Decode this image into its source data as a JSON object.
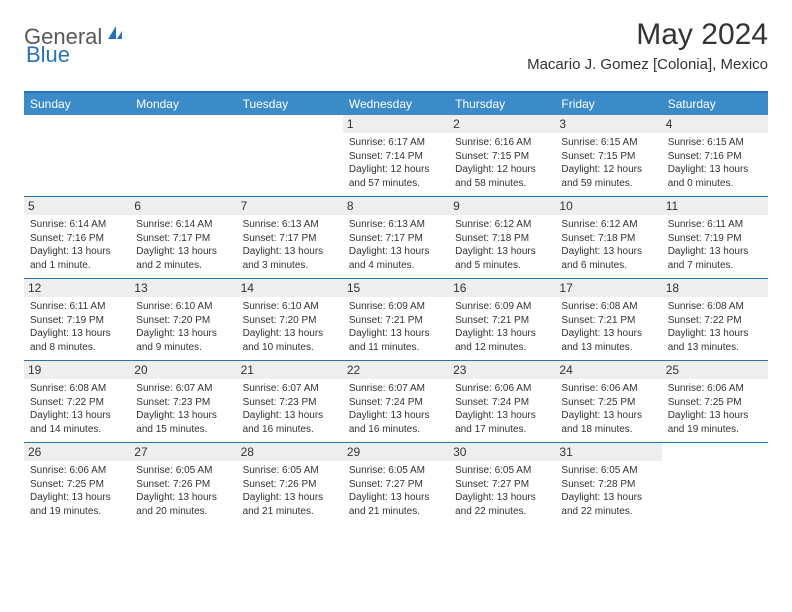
{
  "logo": {
    "text1": "General",
    "text2": "Blue",
    "icon_color": "#2a71b8"
  },
  "title": "May 2024",
  "location": "Macario J. Gomez [Colonia], Mexico",
  "colors": {
    "header_bg": "#3b8bc9",
    "border": "#2a71b8",
    "daynum_bg": "#eeeeee",
    "text": "#333333"
  },
  "weekdays": [
    "Sunday",
    "Monday",
    "Tuesday",
    "Wednesday",
    "Thursday",
    "Friday",
    "Saturday"
  ],
  "weeks": [
    [
      {
        "n": "",
        "sr": "",
        "ss": "",
        "dl": ""
      },
      {
        "n": "",
        "sr": "",
        "ss": "",
        "dl": ""
      },
      {
        "n": "",
        "sr": "",
        "ss": "",
        "dl": ""
      },
      {
        "n": "1",
        "sr": "6:17 AM",
        "ss": "7:14 PM",
        "dl": "12 hours and 57 minutes."
      },
      {
        "n": "2",
        "sr": "6:16 AM",
        "ss": "7:15 PM",
        "dl": "12 hours and 58 minutes."
      },
      {
        "n": "3",
        "sr": "6:15 AM",
        "ss": "7:15 PM",
        "dl": "12 hours and 59 minutes."
      },
      {
        "n": "4",
        "sr": "6:15 AM",
        "ss": "7:16 PM",
        "dl": "13 hours and 0 minutes."
      }
    ],
    [
      {
        "n": "5",
        "sr": "6:14 AM",
        "ss": "7:16 PM",
        "dl": "13 hours and 1 minute."
      },
      {
        "n": "6",
        "sr": "6:14 AM",
        "ss": "7:17 PM",
        "dl": "13 hours and 2 minutes."
      },
      {
        "n": "7",
        "sr": "6:13 AM",
        "ss": "7:17 PM",
        "dl": "13 hours and 3 minutes."
      },
      {
        "n": "8",
        "sr": "6:13 AM",
        "ss": "7:17 PM",
        "dl": "13 hours and 4 minutes."
      },
      {
        "n": "9",
        "sr": "6:12 AM",
        "ss": "7:18 PM",
        "dl": "13 hours and 5 minutes."
      },
      {
        "n": "10",
        "sr": "6:12 AM",
        "ss": "7:18 PM",
        "dl": "13 hours and 6 minutes."
      },
      {
        "n": "11",
        "sr": "6:11 AM",
        "ss": "7:19 PM",
        "dl": "13 hours and 7 minutes."
      }
    ],
    [
      {
        "n": "12",
        "sr": "6:11 AM",
        "ss": "7:19 PM",
        "dl": "13 hours and 8 minutes."
      },
      {
        "n": "13",
        "sr": "6:10 AM",
        "ss": "7:20 PM",
        "dl": "13 hours and 9 minutes."
      },
      {
        "n": "14",
        "sr": "6:10 AM",
        "ss": "7:20 PM",
        "dl": "13 hours and 10 minutes."
      },
      {
        "n": "15",
        "sr": "6:09 AM",
        "ss": "7:21 PM",
        "dl": "13 hours and 11 minutes."
      },
      {
        "n": "16",
        "sr": "6:09 AM",
        "ss": "7:21 PM",
        "dl": "13 hours and 12 minutes."
      },
      {
        "n": "17",
        "sr": "6:08 AM",
        "ss": "7:21 PM",
        "dl": "13 hours and 13 minutes."
      },
      {
        "n": "18",
        "sr": "6:08 AM",
        "ss": "7:22 PM",
        "dl": "13 hours and 13 minutes."
      }
    ],
    [
      {
        "n": "19",
        "sr": "6:08 AM",
        "ss": "7:22 PM",
        "dl": "13 hours and 14 minutes."
      },
      {
        "n": "20",
        "sr": "6:07 AM",
        "ss": "7:23 PM",
        "dl": "13 hours and 15 minutes."
      },
      {
        "n": "21",
        "sr": "6:07 AM",
        "ss": "7:23 PM",
        "dl": "13 hours and 16 minutes."
      },
      {
        "n": "22",
        "sr": "6:07 AM",
        "ss": "7:24 PM",
        "dl": "13 hours and 16 minutes."
      },
      {
        "n": "23",
        "sr": "6:06 AM",
        "ss": "7:24 PM",
        "dl": "13 hours and 17 minutes."
      },
      {
        "n": "24",
        "sr": "6:06 AM",
        "ss": "7:25 PM",
        "dl": "13 hours and 18 minutes."
      },
      {
        "n": "25",
        "sr": "6:06 AM",
        "ss": "7:25 PM",
        "dl": "13 hours and 19 minutes."
      }
    ],
    [
      {
        "n": "26",
        "sr": "6:06 AM",
        "ss": "7:25 PM",
        "dl": "13 hours and 19 minutes."
      },
      {
        "n": "27",
        "sr": "6:05 AM",
        "ss": "7:26 PM",
        "dl": "13 hours and 20 minutes."
      },
      {
        "n": "28",
        "sr": "6:05 AM",
        "ss": "7:26 PM",
        "dl": "13 hours and 21 minutes."
      },
      {
        "n": "29",
        "sr": "6:05 AM",
        "ss": "7:27 PM",
        "dl": "13 hours and 21 minutes."
      },
      {
        "n": "30",
        "sr": "6:05 AM",
        "ss": "7:27 PM",
        "dl": "13 hours and 22 minutes."
      },
      {
        "n": "31",
        "sr": "6:05 AM",
        "ss": "7:28 PM",
        "dl": "13 hours and 22 minutes."
      },
      {
        "n": "",
        "sr": "",
        "ss": "",
        "dl": ""
      }
    ]
  ],
  "labels": {
    "sunrise": "Sunrise:",
    "sunset": "Sunset:",
    "daylight": "Daylight:"
  }
}
